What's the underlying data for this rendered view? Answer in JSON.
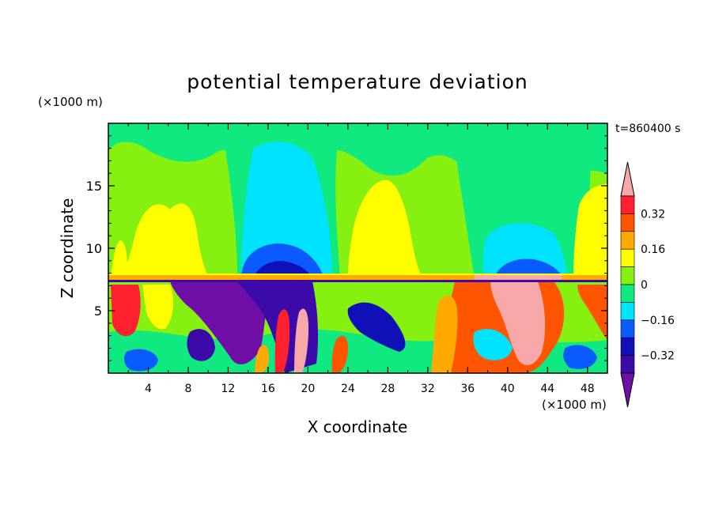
{
  "chart_data": {
    "type": "heatmap",
    "title": "potential temperature deviation",
    "time_label": "t=860400 s",
    "xlabel": "X coordinate",
    "ylabel": "Z coordinate",
    "x_unit": "(×1000 m)",
    "y_unit": "(×1000 m)",
    "xlim": [
      0,
      50
    ],
    "ylim": [
      0,
      20
    ],
    "x_ticks": [
      4,
      8,
      12,
      16,
      20,
      24,
      28,
      32,
      36,
      40,
      44,
      48
    ],
    "y_ticks": [
      5,
      10,
      15
    ],
    "colorbar": {
      "levels": [
        -0.4,
        -0.32,
        -0.24,
        -0.16,
        -0.08,
        0,
        0.08,
        0.16,
        0.24,
        0.32,
        0.4
      ],
      "labels": [
        "0.32",
        "0.16",
        "0",
        "−0.16",
        "−0.32"
      ],
      "colors": [
        "#6f0fa8",
        "#3b0aa8",
        "#1010b8",
        "#0a5bff",
        "#00e3ff",
        "#10e880",
        "#86f010",
        "#ffff00",
        "#ffaa00",
        "#ff5500",
        "#ff2030",
        "#f8a8a8"
      ],
      "extend": "both"
    }
  }
}
